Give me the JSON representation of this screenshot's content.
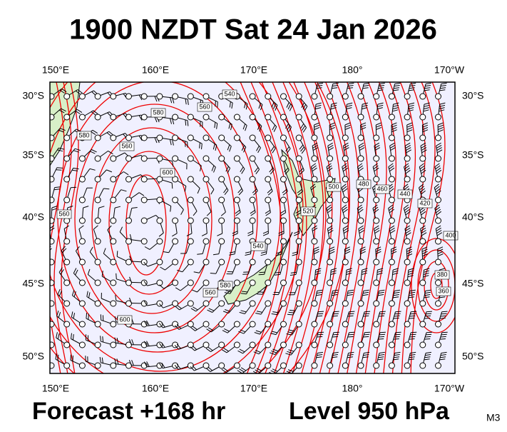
{
  "header": {
    "title": "1900 NZDT Sat 24 Jan 2026"
  },
  "axes": {
    "longitudes": [
      "150°E",
      "160°E",
      "170°E",
      "180°",
      "170°W"
    ],
    "latitudes": [
      "30°S",
      "35°S",
      "40°S",
      "45°S",
      "50°S"
    ]
  },
  "contour_labels": [
    "580",
    "560",
    "540",
    "560",
    "600",
    "560",
    "580",
    "540",
    "520",
    "500",
    "480",
    "460",
    "440",
    "420",
    "400",
    "380",
    "360",
    "560",
    "580",
    "600"
  ],
  "footer": {
    "forecast": "Forecast +168 hr",
    "level": "Level 950 hPa",
    "model": "M3"
  }
}
